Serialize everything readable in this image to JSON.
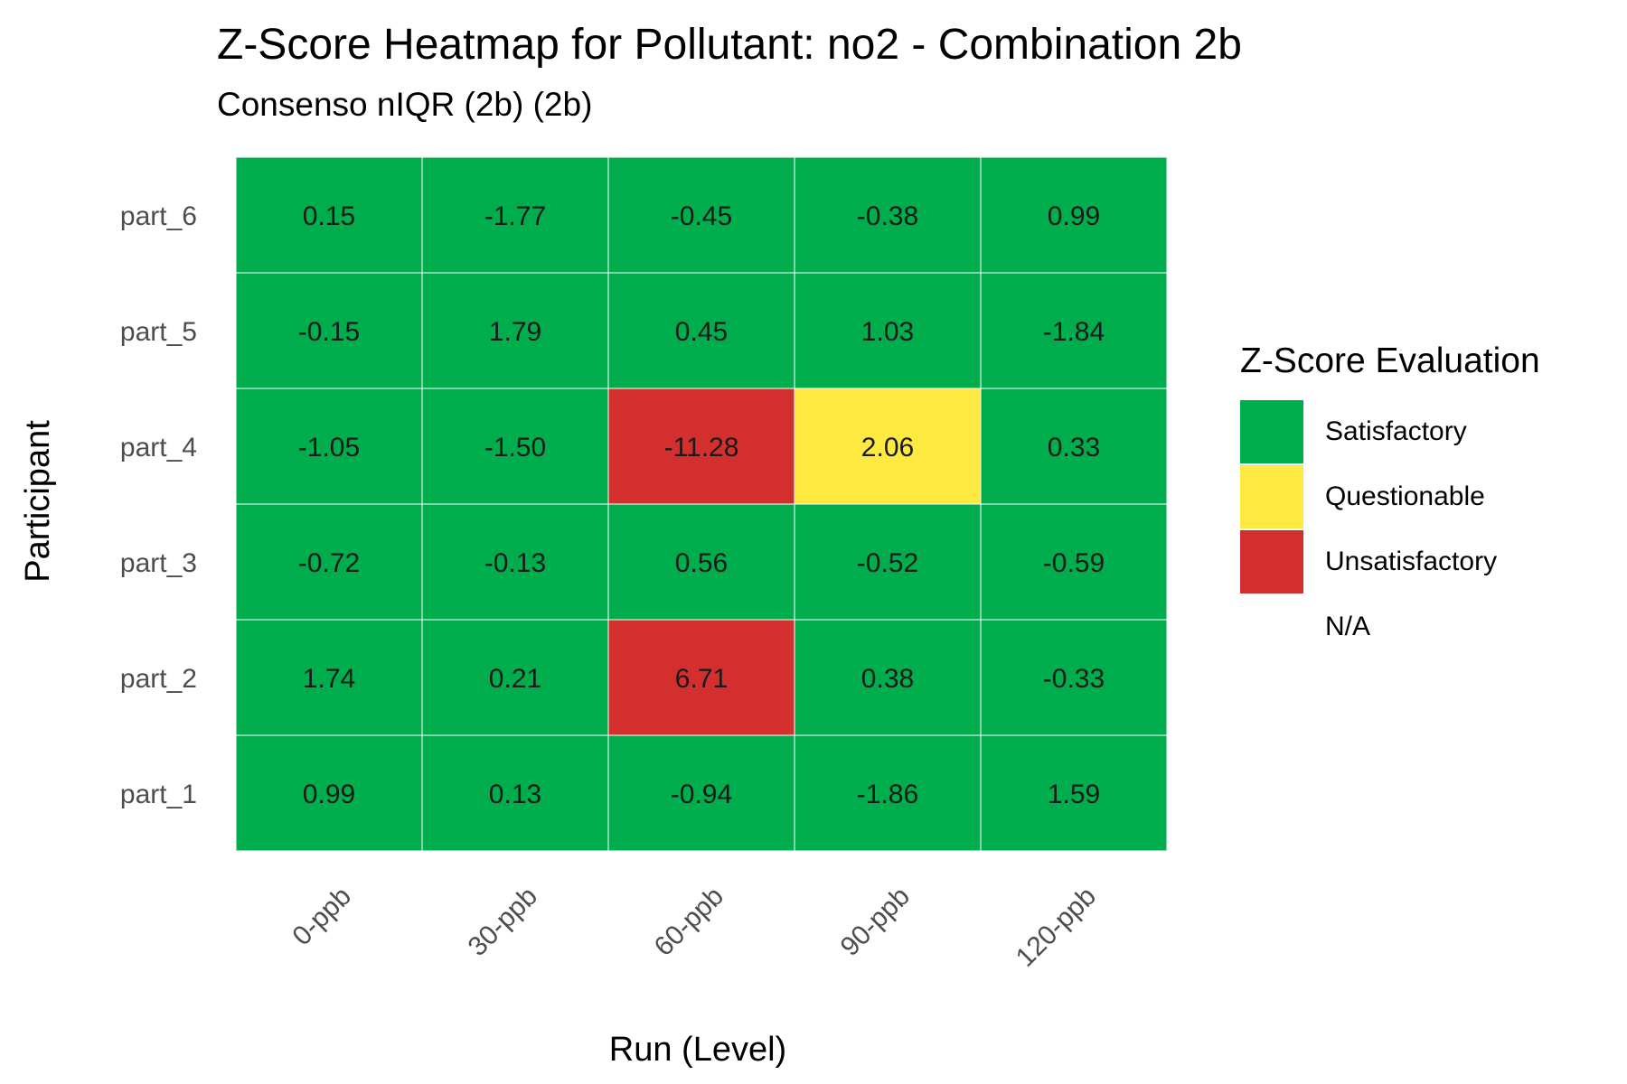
{
  "chart_data": {
    "type": "heatmap",
    "title": "Z-Score Heatmap for Pollutant: no2 - Combination 2b",
    "subtitle": "Consenso nIQR (2b) (2b)",
    "xlabel": "Run (Level)",
    "ylabel": "Participant",
    "x_categories": [
      "0-ppb",
      "30-ppb",
      "60-ppb",
      "90-ppb",
      "120-ppb"
    ],
    "y_categories": [
      "part_6",
      "part_5",
      "part_4",
      "part_3",
      "part_2",
      "part_1"
    ],
    "z_values": [
      [
        "0.15",
        "-1.77",
        "-0.45",
        "-0.38",
        "0.99"
      ],
      [
        "-0.15",
        "1.79",
        "0.45",
        "1.03",
        "-1.84"
      ],
      [
        "-1.05",
        "-1.50",
        "-11.28",
        "2.06",
        "0.33"
      ],
      [
        "-0.72",
        "-0.13",
        "0.56",
        "-0.52",
        "-0.59"
      ],
      [
        "1.74",
        "0.21",
        "6.71",
        "0.38",
        "-0.33"
      ],
      [
        "0.99",
        "0.13",
        "-0.94",
        "-1.86",
        "1.59"
      ]
    ],
    "evaluations": [
      [
        "Satisfactory",
        "Satisfactory",
        "Satisfactory",
        "Satisfactory",
        "Satisfactory"
      ],
      [
        "Satisfactory",
        "Satisfactory",
        "Satisfactory",
        "Satisfactory",
        "Satisfactory"
      ],
      [
        "Satisfactory",
        "Satisfactory",
        "Unsatisfactory",
        "Questionable",
        "Satisfactory"
      ],
      [
        "Satisfactory",
        "Satisfactory",
        "Satisfactory",
        "Satisfactory",
        "Satisfactory"
      ],
      [
        "Satisfactory",
        "Satisfactory",
        "Unsatisfactory",
        "Satisfactory",
        "Satisfactory"
      ],
      [
        "Satisfactory",
        "Satisfactory",
        "Satisfactory",
        "Satisfactory",
        "Satisfactory"
      ]
    ],
    "legend": {
      "title": "Z-Score Evaluation",
      "placement": "right",
      "items": [
        {
          "label": "Satisfactory",
          "color": "#00ad4c"
        },
        {
          "label": "Questionable",
          "color": "#fde93f"
        },
        {
          "label": "Unsatisfactory",
          "color": "#d32f2f"
        },
        {
          "label": "N/A",
          "color": "#ffffff"
        }
      ]
    },
    "grid": false
  }
}
